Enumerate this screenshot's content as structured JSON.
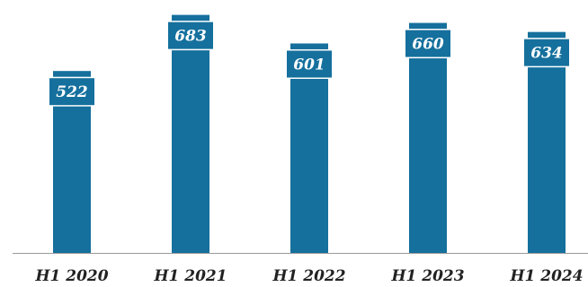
{
  "chart_data": {
    "type": "bar",
    "title": "",
    "xlabel": "",
    "ylabel": "",
    "categories": [
      "H1 2020",
      "H1 2021",
      "H1 2022",
      "H1 2023",
      "H1 2024"
    ],
    "values": [
      522,
      683,
      601,
      660,
      634
    ],
    "data_labels": [
      "522",
      "683",
      "601",
      "660",
      "634"
    ],
    "ylim": [
      0,
      700
    ],
    "grid": false,
    "legend": "none",
    "colors": {
      "bar": "#15709d",
      "label_text": "#ffffff",
      "tick_text": "#222222",
      "axis": "#9a9a9a"
    }
  }
}
